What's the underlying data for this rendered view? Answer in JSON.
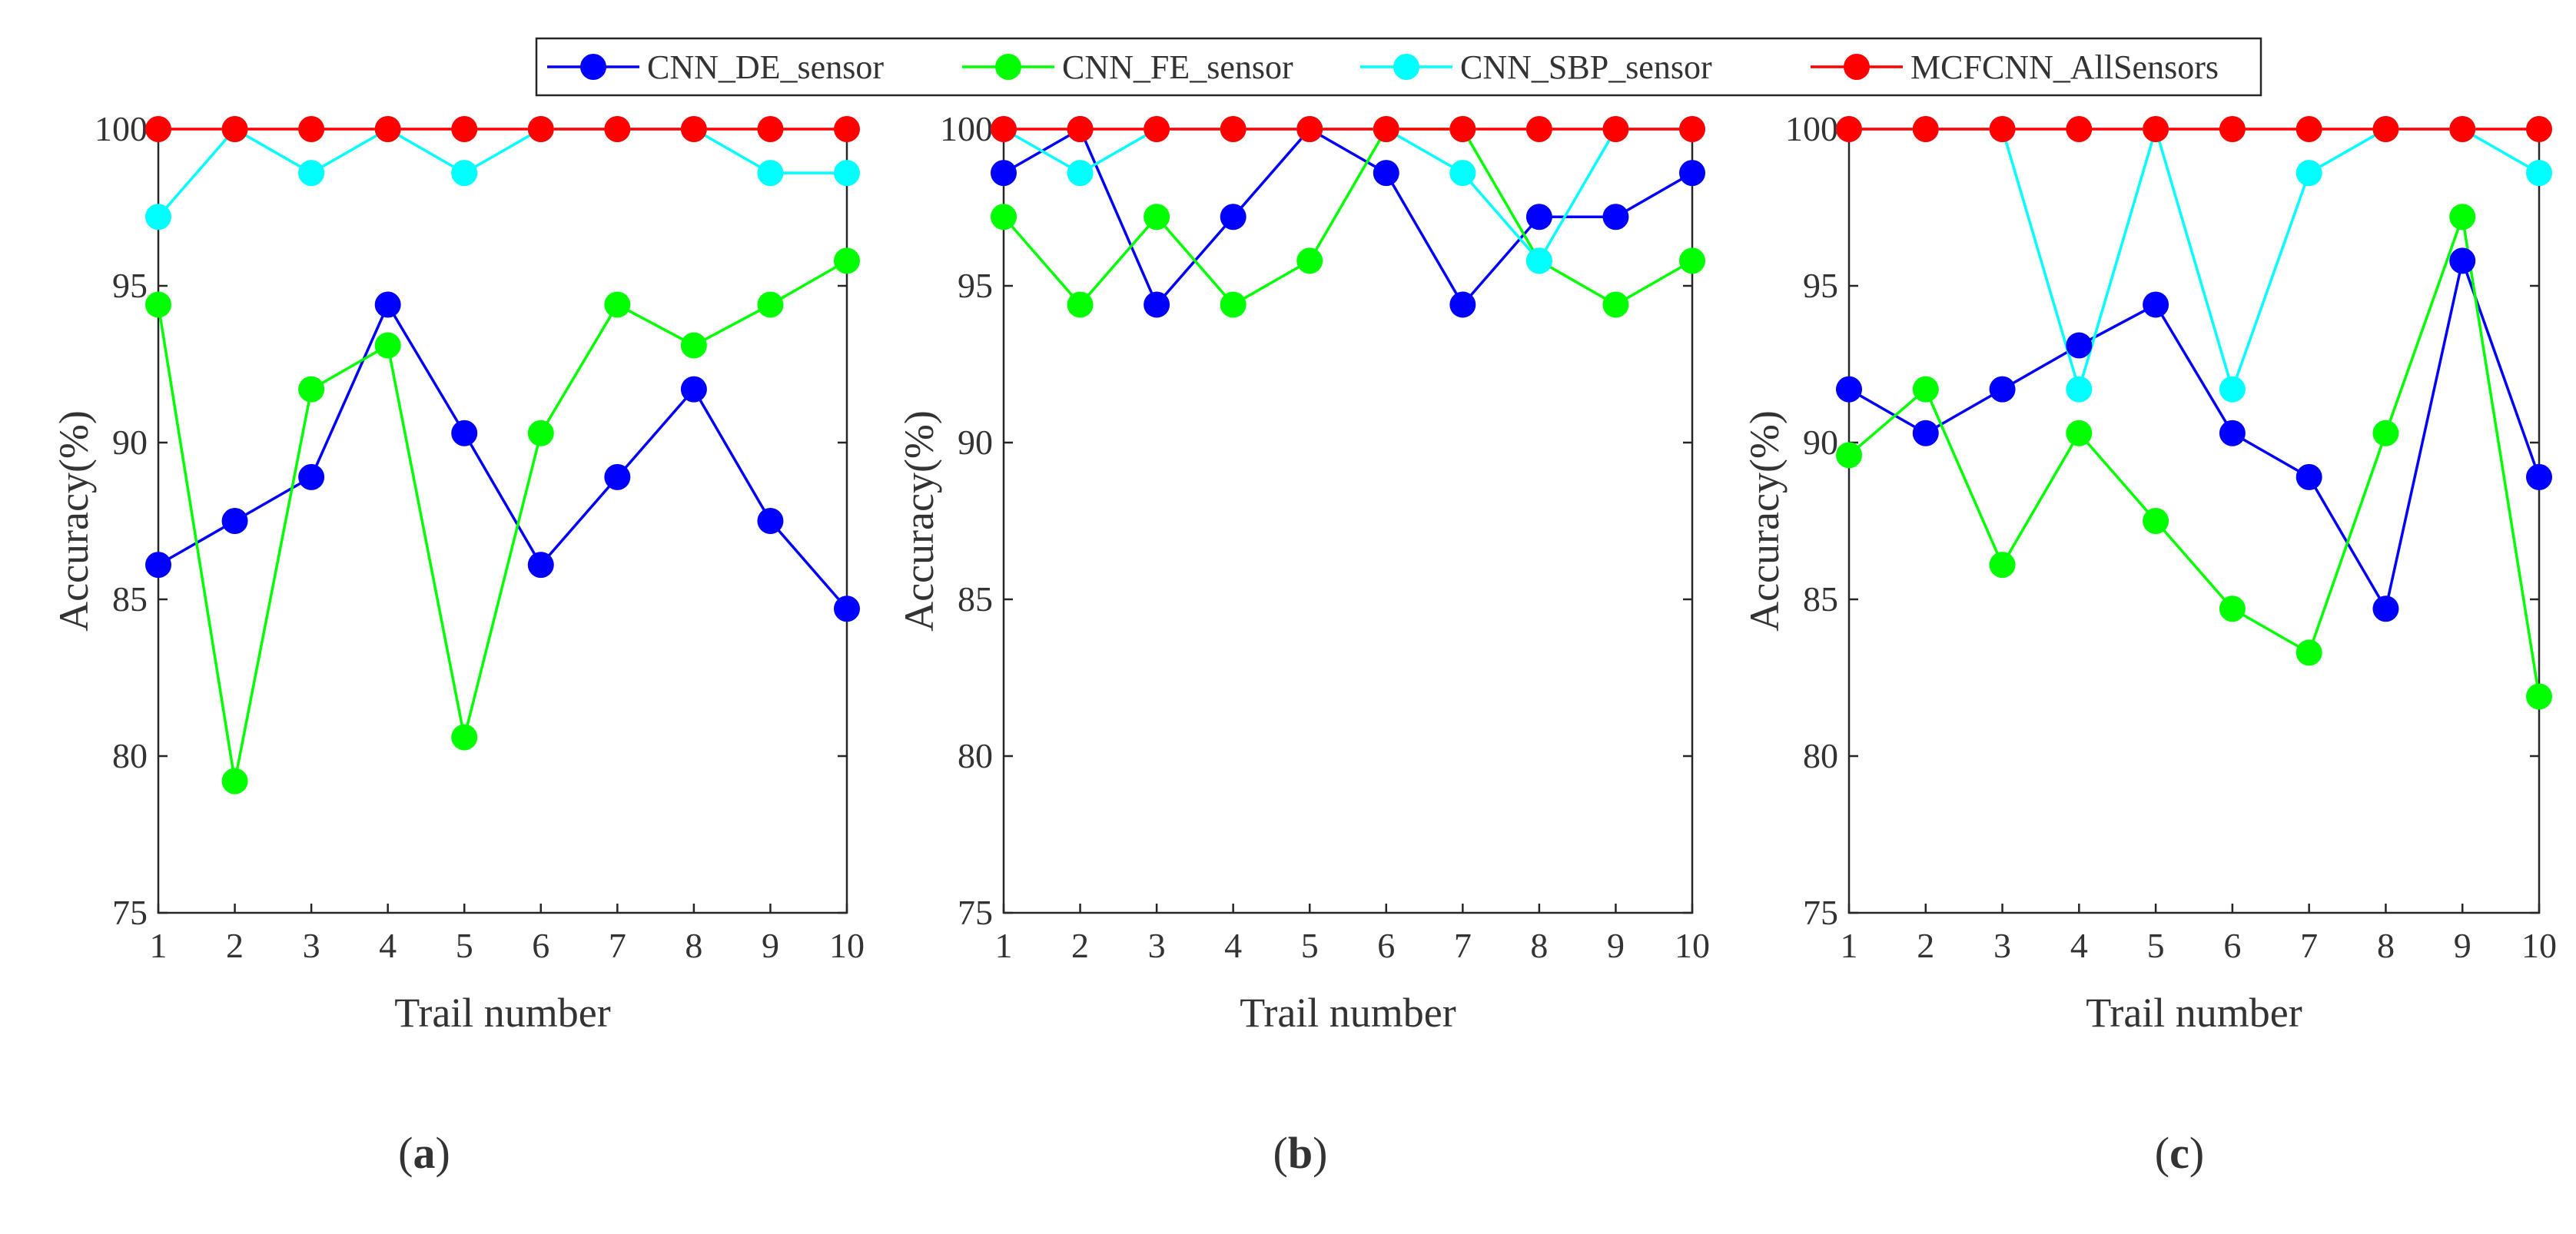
{
  "chart_data": [
    {
      "type": "line",
      "caption": "a",
      "x": [
        1,
        2,
        3,
        4,
        5,
        6,
        7,
        8,
        9,
        10
      ],
      "xticks": [
        "1",
        "2",
        "3",
        "4",
        "5",
        "6",
        "7",
        "8",
        "9",
        "10"
      ],
      "yticks": [
        "75",
        "80",
        "85",
        "90",
        "95",
        "100"
      ],
      "xlabel": "Trail number",
      "ylabel": "Accuracy(%)",
      "xlim": [
        1,
        10
      ],
      "ylim": [
        75,
        100
      ],
      "series": [
        {
          "name": "CNN_DE_sensor",
          "color": "#0000ff",
          "values": [
            86.1,
            87.5,
            88.9,
            94.4,
            90.3,
            86.1,
            88.9,
            91.7,
            87.5,
            84.7
          ]
        },
        {
          "name": "CNN_FE_sensor",
          "color": "#00ff00",
          "values": [
            94.4,
            79.2,
            91.7,
            93.1,
            80.6,
            90.3,
            94.4,
            93.1,
            94.4,
            95.8
          ]
        },
        {
          "name": "CNN_SBP_sensor",
          "color": "#00ffff",
          "values": [
            97.2,
            100,
            98.6,
            100,
            98.6,
            100,
            100,
            100,
            98.6,
            98.6
          ]
        },
        {
          "name": "MCFCNN_AllSensors",
          "color": "#ff0000",
          "values": [
            100,
            100,
            100,
            100,
            100,
            100,
            100,
            100,
            100,
            100
          ]
        }
      ]
    },
    {
      "type": "line",
      "caption": "b",
      "x": [
        1,
        2,
        3,
        4,
        5,
        6,
        7,
        8,
        9,
        10
      ],
      "xticks": [
        "1",
        "2",
        "3",
        "4",
        "5",
        "6",
        "7",
        "8",
        "9",
        "10"
      ],
      "yticks": [
        "75",
        "80",
        "85",
        "90",
        "95",
        "100"
      ],
      "xlabel": "Trail number",
      "ylabel": "Accuracy(%)",
      "xlim": [
        1,
        10
      ],
      "ylim": [
        75,
        100
      ],
      "series": [
        {
          "name": "CNN_DE_sensor",
          "color": "#0000ff",
          "values": [
            98.6,
            100,
            94.4,
            97.2,
            100,
            98.6,
            94.4,
            97.2,
            97.2,
            98.6
          ]
        },
        {
          "name": "CNN_FE_sensor",
          "color": "#00ff00",
          "values": [
            97.2,
            94.4,
            97.2,
            94.4,
            95.8,
            100,
            100,
            95.8,
            94.4,
            95.8
          ]
        },
        {
          "name": "CNN_SBP_sensor",
          "color": "#00ffff",
          "values": [
            100,
            98.6,
            100,
            100,
            100,
            100,
            98.6,
            95.8,
            100,
            100
          ]
        },
        {
          "name": "MCFCNN_AllSensors",
          "color": "#ff0000",
          "values": [
            100,
            100,
            100,
            100,
            100,
            100,
            100,
            100,
            100,
            100
          ]
        }
      ]
    },
    {
      "type": "line",
      "caption": "c",
      "x": [
        1,
        2,
        3,
        4,
        5,
        6,
        7,
        8,
        9,
        10
      ],
      "xticks": [
        "1",
        "2",
        "3",
        "4",
        "5",
        "6",
        "7",
        "8",
        "9",
        "10"
      ],
      "yticks": [
        "75",
        "80",
        "85",
        "90",
        "95",
        "100"
      ],
      "xlabel": "Trail number",
      "ylabel": "Accuracy(%)",
      "xlim": [
        1,
        10
      ],
      "ylim": [
        75,
        100
      ],
      "series": [
        {
          "name": "CNN_DE_sensor",
          "color": "#0000ff",
          "values": [
            91.7,
            90.3,
            91.7,
            93.1,
            94.4,
            90.3,
            88.9,
            84.7,
            95.8,
            88.9
          ]
        },
        {
          "name": "CNN_FE_sensor",
          "color": "#00ff00",
          "values": [
            89.6,
            91.7,
            86.1,
            90.3,
            87.5,
            84.7,
            83.3,
            90.3,
            97.2,
            81.9
          ]
        },
        {
          "name": "CNN_SBP_sensor",
          "color": "#00ffff",
          "values": [
            100,
            100,
            100,
            91.7,
            100,
            91.7,
            98.6,
            100,
            100,
            98.6
          ]
        },
        {
          "name": "MCFCNN_AllSensors",
          "color": "#ff0000",
          "values": [
            100,
            100,
            100,
            100,
            100,
            100,
            100,
            100,
            100,
            100
          ]
        }
      ]
    }
  ],
  "legend": {
    "position": "top-center",
    "entries": [
      "CNN_DE_sensor",
      "CNN_FE_sensor",
      "CNN_SBP_sensor",
      "MCFCNN_AllSensors"
    ],
    "colors": [
      "#0000ff",
      "#00ff00",
      "#00ffff",
      "#ff0000"
    ]
  }
}
